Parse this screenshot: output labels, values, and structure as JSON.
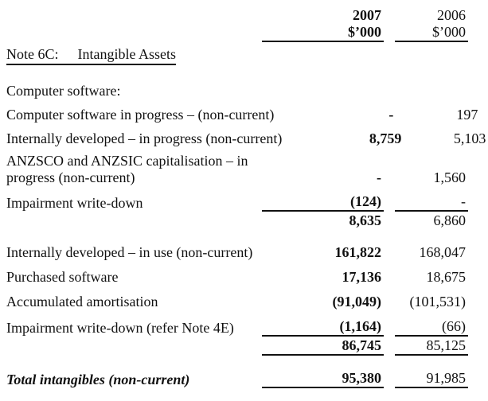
{
  "header": {
    "col_2007": {
      "year": "2007",
      "unit": "$’000"
    },
    "col_2006": {
      "year": "2006",
      "unit": "$’000"
    }
  },
  "title": {
    "note_ref": "Note 6C:",
    "note_name": "Intangible Assets"
  },
  "table": {
    "rows": [
      {
        "label": "Computer software:",
        "v2007": "",
        "v2006": ""
      },
      {
        "label": "Computer software in progress – (non-current)",
        "v2007": "-",
        "v2006": "197"
      },
      {
        "label": "Internally developed – in progress (non-current)",
        "v2007": "8,759",
        "v2006": "5,103"
      },
      {
        "label_line1": "ANZSCO and ANZSIC capitalisation – in",
        "label_line2": "progress (non-current)",
        "v2007": "-",
        "v2006": "1,560"
      },
      {
        "label": "Impairment write-down",
        "v2007": "(124)",
        "v2006": "-"
      },
      {
        "label": "",
        "v2007": "8,635",
        "v2006": "6,860"
      },
      {
        "label": "Internally developed – in use (non-current)",
        "v2007": "161,822",
        "v2006": "168,047"
      },
      {
        "label": "Purchased software",
        "v2007": "17,136",
        "v2006": "18,675"
      },
      {
        "label": "Accumulated amortisation",
        "v2007": "(91,049)",
        "v2006": "(101,531)"
      },
      {
        "label": "Impairment write-down (refer Note 4E)",
        "v2007": "(1,164)",
        "v2006": "(66)"
      },
      {
        "label": "",
        "v2007": "86,745",
        "v2006": "85,125"
      },
      {
        "label": "Total intangibles (non-current)",
        "v2007": "95,380",
        "v2006": "91,985"
      }
    ]
  },
  "colors": {
    "text": "#111111",
    "background": "#ffffff",
    "rule": "#111111"
  }
}
